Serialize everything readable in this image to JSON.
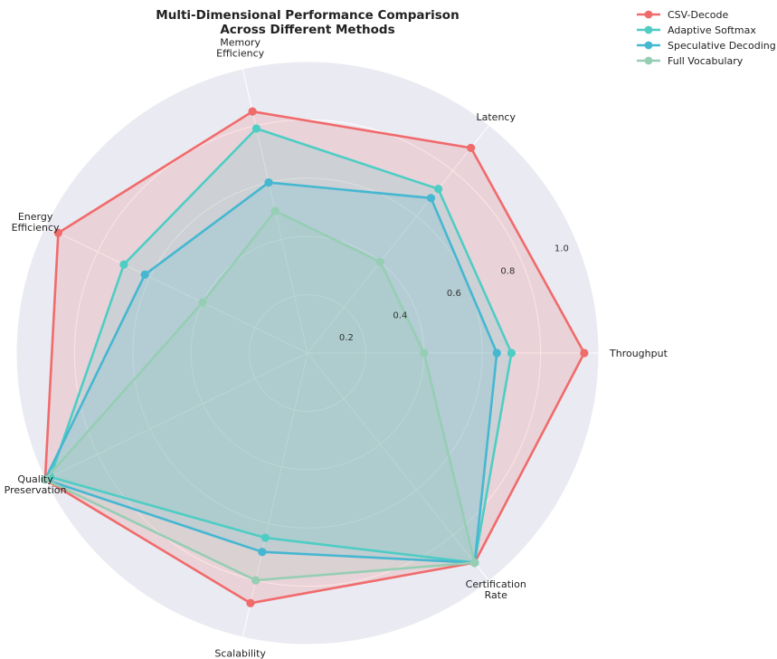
{
  "chart_data": {
    "type": "radar",
    "title_lines": [
      "Multi-Dimensional Performance Comparison",
      "Across Different Methods"
    ],
    "axes": [
      {
        "lines": [
          "Throughput"
        ]
      },
      {
        "lines": [
          "Latency"
        ]
      },
      {
        "lines": [
          "Memory",
          "Efficiency"
        ]
      },
      {
        "lines": [
          "Energy",
          "Efficiency"
        ]
      },
      {
        "lines": [
          "Quality",
          "Preservation"
        ]
      },
      {
        "lines": [
          "Scalability"
        ]
      },
      {
        "lines": [
          "Certification",
          "Rate"
        ]
      }
    ],
    "rlim": [
      0,
      1.0
    ],
    "rticks": [
      "0.2",
      "0.4",
      "0.6",
      "0.8",
      "1.0"
    ],
    "rtick_values": [
      0.2,
      0.4,
      0.6,
      0.8,
      1.0
    ],
    "grid": true,
    "legend_position": "top-right",
    "series": [
      {
        "name": "CSV-Decode",
        "color": "#f06b6b",
        "values": [
          0.95,
          0.9,
          0.85,
          0.95,
          1.0,
          0.88,
          0.92
        ]
      },
      {
        "name": "Adaptive Softmax",
        "color": "#4ecdc4",
        "values": [
          0.7,
          0.72,
          0.79,
          0.7,
          0.98,
          0.65,
          0.92
        ]
      },
      {
        "name": "Speculative Decoding",
        "color": "#45b7d1",
        "values": [
          0.65,
          0.68,
          0.6,
          0.62,
          1.0,
          0.7,
          0.92
        ]
      },
      {
        "name": "Full Vocabulary",
        "color": "#96ceb4",
        "values": [
          0.4,
          0.4,
          0.5,
          0.4,
          1.0,
          0.8,
          0.92
        ]
      }
    ]
  }
}
